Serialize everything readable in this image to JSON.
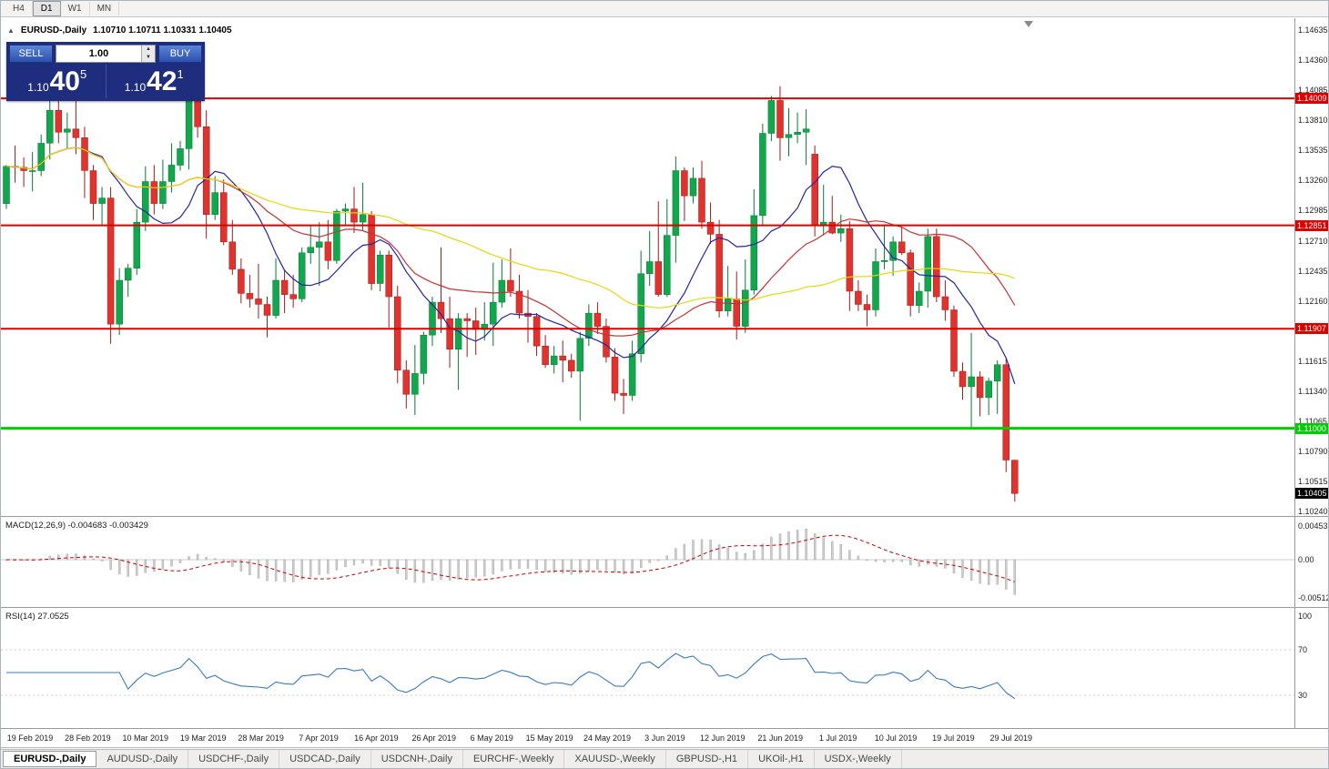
{
  "colors": {
    "bull": "#12a64d",
    "bull_edge": "#077a35",
    "bear": "#e0332e",
    "bear_edge": "#9e1c18",
    "ma_fast": "#2323a8",
    "ma_mid": "#cc3030",
    "ma_slow": "#e8d70a",
    "line_red": "#dd0000",
    "line_green": "#00ce00",
    "macd_bar": "#cdcdcd",
    "macd_bar_edge": "#9e9e9e",
    "macd_signal": "#cc0000",
    "rsi_line": "#3a7abf",
    "current_tag_bg": "#000000"
  },
  "toolbar": {
    "timeframes": [
      {
        "label": "H4",
        "active": false
      },
      {
        "label": "D1",
        "active": true
      },
      {
        "label": "W1",
        "active": false
      },
      {
        "label": "MN",
        "active": false
      }
    ]
  },
  "chart_header": {
    "collapse_arrow": "▲",
    "symbol": "EURUSD-,Daily",
    "ohlc": "1.10710 1.10711 1.10331 1.10405"
  },
  "trade_panel": {
    "sell_label": "SELL",
    "buy_label": "BUY",
    "volume": "1.00",
    "spin_up": "▲",
    "spin_down": "▼",
    "sell_price": {
      "prefix": "1.10",
      "big": "40",
      "sup": "5"
    },
    "buy_price": {
      "prefix": "1.10",
      "big": "42",
      "sup": "1"
    }
  },
  "price_axis": {
    "ticks": [
      "1.14635",
      "1.14360",
      "1.14085",
      "1.13810",
      "1.13535",
      "1.13260",
      "1.12985",
      "1.12710",
      "1.12435",
      "1.12160",
      "1.11885",
      "1.11615",
      "1.11340",
      "1.11065",
      "1.10790",
      "1.10515",
      "1.10240"
    ]
  },
  "levels": [
    {
      "label": "1.14009",
      "price": 1.14009,
      "color": "#dd0000",
      "width": 2
    },
    {
      "label": "1.12851",
      "price": 1.12851,
      "color": "#dd0000",
      "width": 2
    },
    {
      "label": "1.11907",
      "price": 1.11907,
      "color": "#dd0000",
      "width": 2
    },
    {
      "label": "1.11000",
      "price": 1.11,
      "color": "#00ce00",
      "width": 3
    }
  ],
  "current_price": {
    "label": "1.10405",
    "price": 1.10405
  },
  "macd_panel": {
    "label": "MACD(12,26,9) -0.004683 -0.003429",
    "axis_ticks": [
      "0.004532",
      "0.00",
      "-0.005122"
    ],
    "params": [
      12,
      26,
      9
    ],
    "values": [
      -0.004683,
      -0.003429
    ]
  },
  "rsi_panel": {
    "label": "RSI(14) 27.0525",
    "axis_ticks": [
      "100",
      "70",
      "30"
    ],
    "period": 14,
    "value": 27.0525,
    "levels": [
      70,
      30
    ]
  },
  "date_axis": [
    "19 Feb 2019",
    "28 Feb 2019",
    "10 Mar 2019",
    "19 Mar 2019",
    "28 Mar 2019",
    "7 Apr 2019",
    "16 Apr 2019",
    "26 Apr 2019",
    "6 May 2019",
    "15 May 2019",
    "24 May 2019",
    "3 Jun 2019",
    "12 Jun 2019",
    "21 Jun 2019",
    "1 Jul 2019",
    "10 Jul 2019",
    "19 Jul 2019",
    "29 Jul 2019"
  ],
  "tabs": [
    {
      "label": "EURUSD-,Daily",
      "active": true
    },
    {
      "label": "AUDUSD-,Daily",
      "active": false
    },
    {
      "label": "USDCHF-,Daily",
      "active": false
    },
    {
      "label": "USDCAD-,Daily",
      "active": false
    },
    {
      "label": "USDCNH-,Daily",
      "active": false
    },
    {
      "label": "EURCHF-,Weekly",
      "active": false
    },
    {
      "label": "XAUUSD-,Weekly",
      "active": false
    },
    {
      "label": "GBPUSD-,H1",
      "active": false
    },
    {
      "label": "UKOil-,H1",
      "active": false
    },
    {
      "label": "USDX-,Weekly",
      "active": false
    }
  ],
  "chart_data": {
    "type": "candlestick",
    "title": "EURUSD-,Daily",
    "symbol": "EURUSD",
    "timeframe": "Daily",
    "ylim": [
      1.102,
      1.1474
    ],
    "x_labels": [
      "19 Feb 2019",
      "28 Feb 2019",
      "10 Mar 2019",
      "19 Mar 2019",
      "28 Mar 2019",
      "7 Apr 2019",
      "16 Apr 2019",
      "26 Apr 2019",
      "6 May 2019",
      "15 May 2019",
      "24 May 2019",
      "3 Jun 2019",
      "12 Jun 2019",
      "21 Jun 2019",
      "1 Jul 2019",
      "10 Jul 2019",
      "19 Jul 2019",
      "29 Jul 2019"
    ],
    "moving_averages": [
      {
        "period": 10,
        "color_key": "ma_fast"
      },
      {
        "period": 25,
        "color_key": "ma_mid"
      },
      {
        "period": 50,
        "color_key": "ma_slow"
      }
    ],
    "candles": [
      [
        1.1305,
        1.134,
        1.13,
        1.1339
      ],
      [
        1.1339,
        1.1358,
        1.1324,
        1.1338
      ],
      [
        1.1338,
        1.1347,
        1.132,
        1.1335
      ],
      [
        1.1335,
        1.1352,
        1.1316,
        1.1335
      ],
      [
        1.1335,
        1.1368,
        1.133,
        1.136
      ],
      [
        1.136,
        1.1404,
        1.1345,
        1.139
      ],
      [
        1.139,
        1.14,
        1.136,
        1.137
      ],
      [
        1.137,
        1.1388,
        1.1355,
        1.1373
      ],
      [
        1.1373,
        1.141,
        1.135,
        1.1365
      ],
      [
        1.1365,
        1.1375,
        1.131,
        1.1335
      ],
      [
        1.1335,
        1.134,
        1.129,
        1.1305
      ],
      [
        1.1305,
        1.132,
        1.1285,
        1.131
      ],
      [
        1.131,
        1.132,
        1.1177,
        1.1195
      ],
      [
        1.1195,
        1.1246,
        1.1185,
        1.1235
      ],
      [
        1.1235,
        1.125,
        1.122,
        1.1246
      ],
      [
        1.1246,
        1.13,
        1.124,
        1.1288
      ],
      [
        1.1288,
        1.1339,
        1.128,
        1.1325
      ],
      [
        1.1325,
        1.134,
        1.1295,
        1.1305
      ],
      [
        1.1305,
        1.1345,
        1.13,
        1.1325
      ],
      [
        1.1325,
        1.136,
        1.1315,
        1.134
      ],
      [
        1.134,
        1.1362,
        1.1335,
        1.1355
      ],
      [
        1.1355,
        1.1448,
        1.1336,
        1.142
      ],
      [
        1.142,
        1.1438,
        1.1365,
        1.1375
      ],
      [
        1.1375,
        1.139,
        1.1273,
        1.1295
      ],
      [
        1.1295,
        1.133,
        1.129,
        1.1315
      ],
      [
        1.1315,
        1.1327,
        1.1267,
        1.127
      ],
      [
        1.127,
        1.129,
        1.124,
        1.1245
      ],
      [
        1.1245,
        1.1255,
        1.1214,
        1.1223
      ],
      [
        1.1223,
        1.124,
        1.121,
        1.1218
      ],
      [
        1.1218,
        1.125,
        1.12,
        1.1213
      ],
      [
        1.1213,
        1.122,
        1.1183,
        1.1203
      ],
      [
        1.1203,
        1.1255,
        1.12,
        1.1235
      ],
      [
        1.1235,
        1.1245,
        1.1205,
        1.1222
      ],
      [
        1.1222,
        1.124,
        1.121,
        1.1218
      ],
      [
        1.1218,
        1.1265,
        1.1215,
        1.126
      ],
      [
        1.126,
        1.1285,
        1.125,
        1.1265
      ],
      [
        1.1265,
        1.1288,
        1.123,
        1.127
      ],
      [
        1.127,
        1.129,
        1.1245,
        1.1253
      ],
      [
        1.1253,
        1.13,
        1.125,
        1.1298
      ],
      [
        1.1298,
        1.1305,
        1.1285,
        1.13
      ],
      [
        1.13,
        1.132,
        1.1278,
        1.1288
      ],
      [
        1.1288,
        1.1324,
        1.128,
        1.1295
      ],
      [
        1.1295,
        1.1298,
        1.1226,
        1.1232
      ],
      [
        1.1232,
        1.1262,
        1.1225,
        1.1258
      ],
      [
        1.1258,
        1.1262,
        1.1192,
        1.122
      ],
      [
        1.122,
        1.123,
        1.1141,
        1.1153
      ],
      [
        1.1153,
        1.1162,
        1.1118,
        1.1131
      ],
      [
        1.1131,
        1.1176,
        1.1112,
        1.115
      ],
      [
        1.115,
        1.1188,
        1.114,
        1.1185
      ],
      [
        1.1185,
        1.122,
        1.1175,
        1.1215
      ],
      [
        1.1215,
        1.1265,
        1.1187,
        1.12
      ],
      [
        1.12,
        1.122,
        1.1155,
        1.1172
      ],
      [
        1.1172,
        1.1205,
        1.1135,
        1.12
      ],
      [
        1.12,
        1.1205,
        1.1165,
        1.1198
      ],
      [
        1.1198,
        1.121,
        1.1167,
        1.119
      ],
      [
        1.119,
        1.1215,
        1.118,
        1.1195
      ],
      [
        1.1195,
        1.1251,
        1.1175,
        1.1215
      ],
      [
        1.1215,
        1.1254,
        1.121,
        1.1235
      ],
      [
        1.1235,
        1.1264,
        1.122,
        1.1225
      ],
      [
        1.1225,
        1.124,
        1.12,
        1.1205
      ],
      [
        1.1205,
        1.1226,
        1.1178,
        1.1202
      ],
      [
        1.1202,
        1.1205,
        1.1166,
        1.1175
      ],
      [
        1.1175,
        1.1185,
        1.1155,
        1.1158
      ],
      [
        1.1158,
        1.1175,
        1.115,
        1.1166
      ],
      [
        1.1166,
        1.118,
        1.1142,
        1.1162
      ],
      [
        1.1162,
        1.1168,
        1.1146,
        1.1152
      ],
      [
        1.1152,
        1.1188,
        1.1107,
        1.1182
      ],
      [
        1.1182,
        1.1213,
        1.1175,
        1.1205
      ],
      [
        1.1205,
        1.1215,
        1.1186,
        1.1193
      ],
      [
        1.1193,
        1.12,
        1.116,
        1.1165
      ],
      [
        1.1165,
        1.1173,
        1.1125,
        1.1132
      ],
      [
        1.1132,
        1.1145,
        1.1113,
        1.113
      ],
      [
        1.113,
        1.118,
        1.1125,
        1.1168
      ],
      [
        1.1168,
        1.1262,
        1.116,
        1.1241
      ],
      [
        1.1241,
        1.128,
        1.123,
        1.1252
      ],
      [
        1.1252,
        1.1307,
        1.122,
        1.1222
      ],
      [
        1.1222,
        1.1309,
        1.122,
        1.1276
      ],
      [
        1.1276,
        1.1348,
        1.1251,
        1.1335
      ],
      [
        1.1335,
        1.1338,
        1.1289,
        1.1312
      ],
      [
        1.1312,
        1.1338,
        1.1305,
        1.1328
      ],
      [
        1.1328,
        1.1344,
        1.1282,
        1.1288
      ],
      [
        1.1288,
        1.1306,
        1.1268,
        1.1277
      ],
      [
        1.1277,
        1.129,
        1.1201,
        1.1207
      ],
      [
        1.1207,
        1.1248,
        1.1202,
        1.1218
      ],
      [
        1.1218,
        1.1243,
        1.1181,
        1.1193
      ],
      [
        1.1193,
        1.1254,
        1.1187,
        1.1226
      ],
      [
        1.1226,
        1.1318,
        1.1222,
        1.1294
      ],
      [
        1.1294,
        1.1378,
        1.1285,
        1.1369
      ],
      [
        1.1369,
        1.1403,
        1.1362,
        1.1399
      ],
      [
        1.1399,
        1.1412,
        1.1344,
        1.1365
      ],
      [
        1.1365,
        1.1392,
        1.1348,
        1.1368
      ],
      [
        1.1368,
        1.1388,
        1.136,
        1.137
      ],
      [
        1.137,
        1.1391,
        1.134,
        1.1373
      ],
      [
        1.135,
        1.1358,
        1.1275,
        1.1285
      ],
      [
        1.1285,
        1.1322,
        1.1276,
        1.1288
      ],
      [
        1.1288,
        1.1312,
        1.1277,
        1.1278
      ],
      [
        1.1278,
        1.1295,
        1.127,
        1.1282
      ],
      [
        1.1282,
        1.1289,
        1.1207,
        1.1225
      ],
      [
        1.1225,
        1.1235,
        1.1207,
        1.1213
      ],
      [
        1.1213,
        1.1222,
        1.1193,
        1.1208
      ],
      [
        1.1208,
        1.1264,
        1.1202,
        1.1252
      ],
      [
        1.1252,
        1.1286,
        1.1245,
        1.1253
      ],
      [
        1.1253,
        1.1275,
        1.1239,
        1.127
      ],
      [
        1.127,
        1.1284,
        1.1258,
        1.126
      ],
      [
        1.126,
        1.1263,
        1.1202,
        1.1212
      ],
      [
        1.1212,
        1.1233,
        1.1205,
        1.1225
      ],
      [
        1.1225,
        1.1282,
        1.121,
        1.1275
      ],
      [
        1.1275,
        1.1282,
        1.1215,
        1.122
      ],
      [
        1.122,
        1.1235,
        1.1198,
        1.1208
      ],
      [
        1.1208,
        1.1212,
        1.1147,
        1.1152
      ],
      [
        1.1152,
        1.116,
        1.1126,
        1.1138
      ],
      [
        1.1138,
        1.1187,
        1.1101,
        1.1147
      ],
      [
        1.1147,
        1.1152,
        1.1111,
        1.1128
      ],
      [
        1.1128,
        1.1146,
        1.1112,
        1.1143
      ],
      [
        1.1143,
        1.1162,
        1.1113,
        1.1158
      ],
      [
        1.1158,
        1.1164,
        1.106,
        1.1071
      ],
      [
        1.1071,
        1.10711,
        1.10331,
        1.10405
      ]
    ]
  }
}
